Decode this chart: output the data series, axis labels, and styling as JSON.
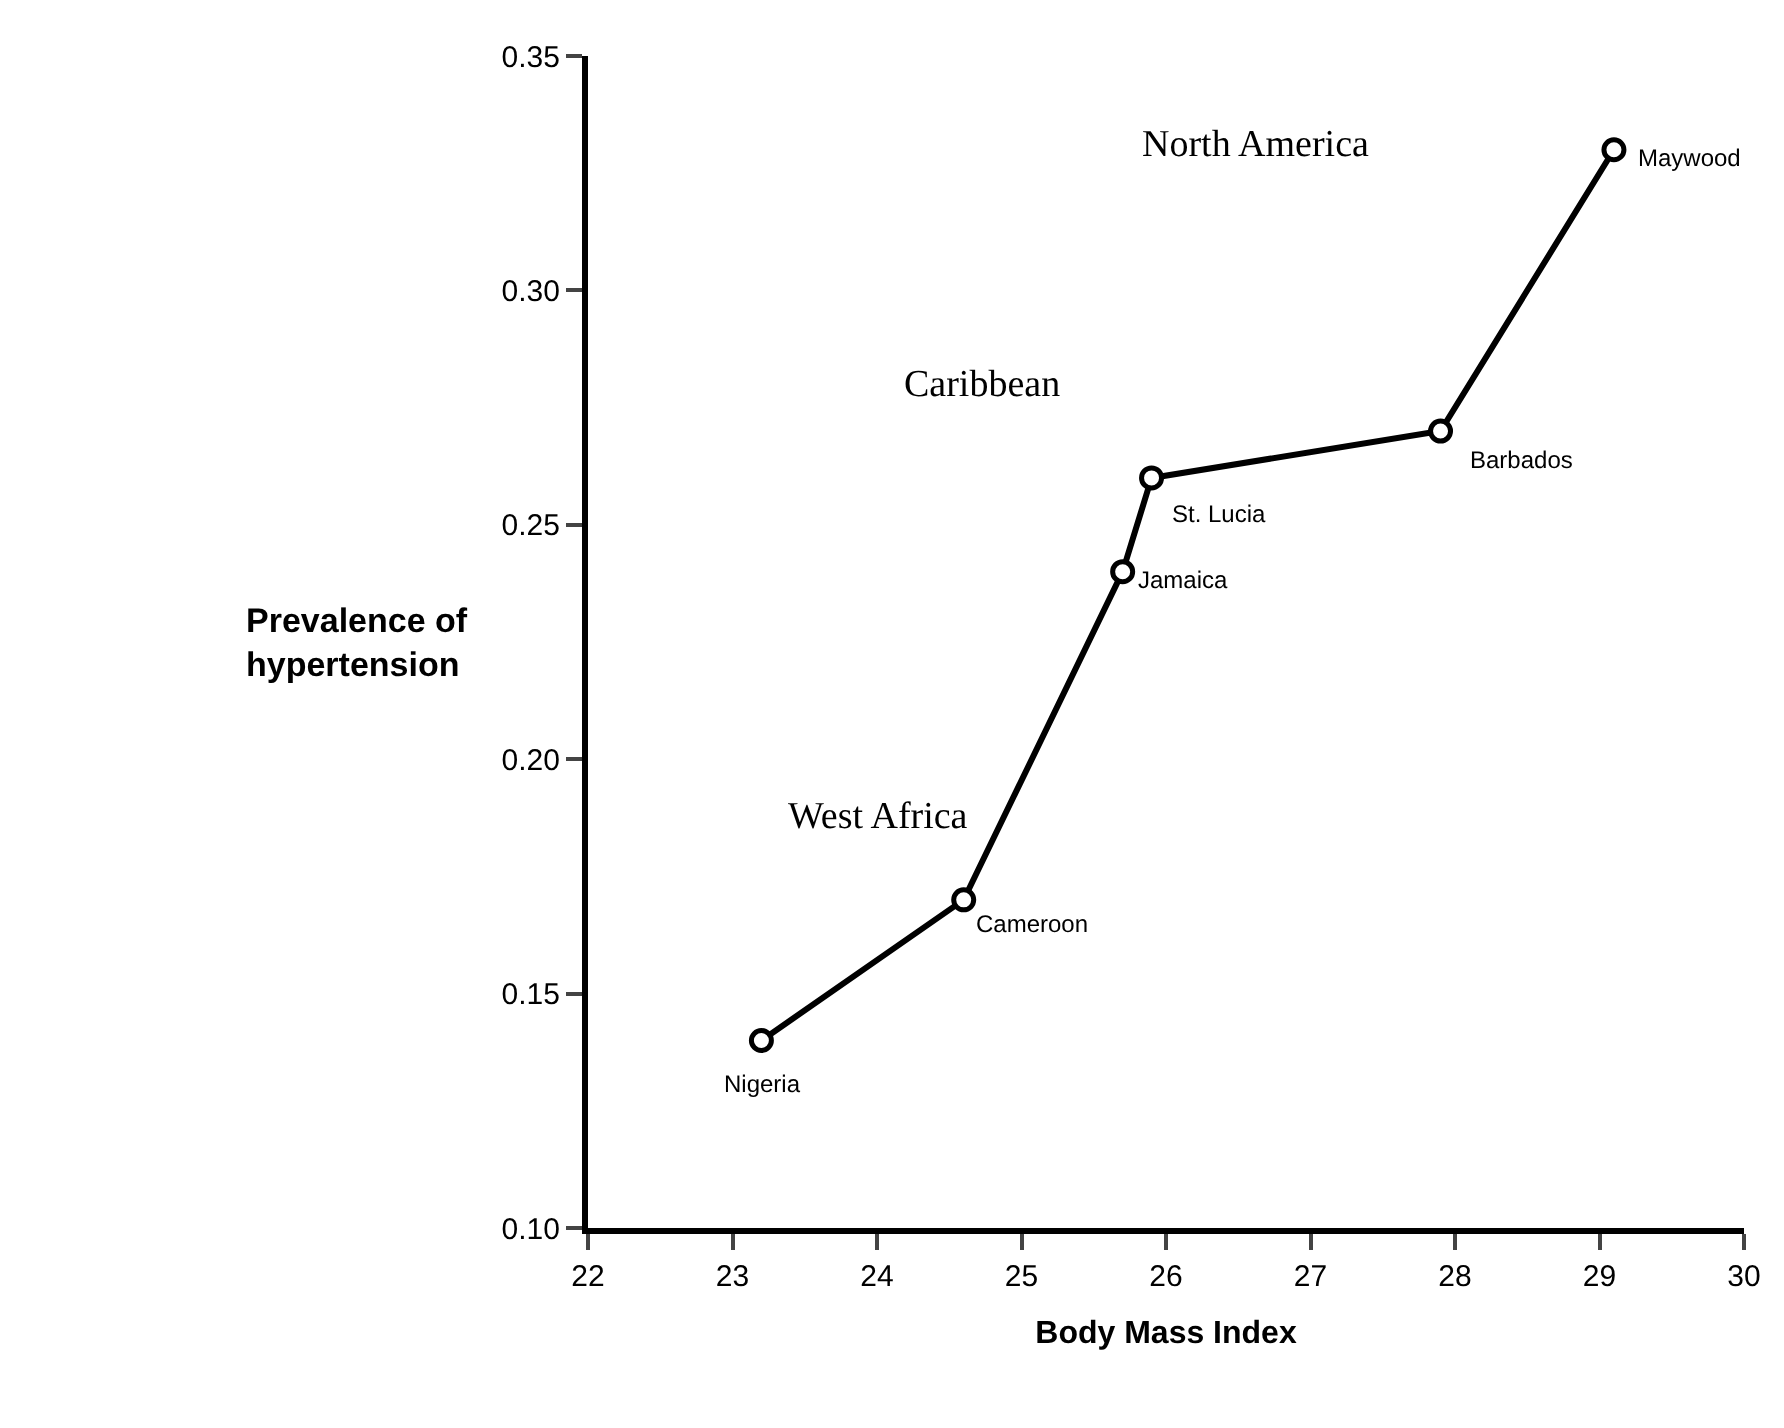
{
  "chart_data": {
    "type": "line",
    "xlabel": "Body Mass Index",
    "ylabel": "Prevalence of\nhypertension",
    "x": [
      23.2,
      24.6,
      25.7,
      25.9,
      27.9,
      29.1
    ],
    "series": [
      {
        "color": "#000000",
        "values": [
          0.14,
          0.17,
          0.24,
          0.26,
          0.27,
          0.33
        ]
      }
    ],
    "marker": "circle",
    "line_style": "solid",
    "xlim": [
      22,
      30
    ],
    "xticks": [
      22,
      23,
      24,
      25,
      26,
      27,
      28,
      29,
      30
    ],
    "ylim": [
      0.1,
      0.35
    ],
    "yticks": [
      {
        "value": 0.1,
        "label": "0.10"
      },
      {
        "value": 0.15,
        "label": "0.15"
      },
      {
        "value": 0.2,
        "label": "0.20"
      },
      {
        "value": 0.25,
        "label": "0.25"
      },
      {
        "value": 0.3,
        "label": "0.30"
      },
      {
        "value": 0.35,
        "label": "0.35"
      }
    ],
    "annotations": [
      {
        "text": "Nigeria",
        "x": 23.2,
        "y": 0.14
      },
      {
        "text": "Cameroon",
        "x": 24.6,
        "y": 0.17
      },
      {
        "text": "Jamaica",
        "x": 25.7,
        "y": 0.24
      },
      {
        "text": "St. Lucia",
        "x": 25.9,
        "y": 0.26
      },
      {
        "text": "Barbados",
        "x": 27.9,
        "y": 0.27
      },
      {
        "text": "Maywood",
        "x": 29.1,
        "y": 0.33
      },
      "West Africa",
      "Caribbean",
      "North America"
    ]
  }
}
